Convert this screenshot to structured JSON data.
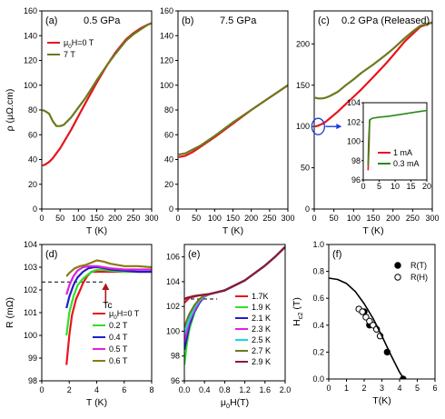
{
  "chart_data": [
    {
      "id": "a",
      "type": "line",
      "title": "(a)",
      "subtitle": "0.5 GPa",
      "xlabel": "T (K)",
      "ylabel": "ρ (μΩ.cm)",
      "xlim": [
        0,
        300
      ],
      "ylim": [
        0,
        160
      ],
      "xticks": [
        0,
        50,
        100,
        150,
        200,
        250,
        300
      ],
      "yticks": [
        0,
        20,
        40,
        60,
        80,
        100,
        120,
        140,
        160
      ],
      "legend_position": "top-left",
      "series": [
        {
          "name": "μ0H=0 T",
          "color": "#e8141c",
          "x": [
            2,
            10,
            20,
            30,
            40,
            50,
            60,
            80,
            100,
            120,
            150,
            180,
            200,
            230,
            250,
            270,
            290,
            300
          ],
          "y": [
            35,
            36,
            38,
            41,
            45,
            49,
            54,
            64,
            75,
            86,
            102,
            117,
            126,
            137,
            142,
            146,
            149,
            150
          ]
        },
        {
          "name": "7 T",
          "color": "#6b7a1e",
          "x": [
            2,
            10,
            20,
            30,
            40,
            50,
            60,
            80,
            100,
            120,
            150,
            180,
            200,
            230,
            250,
            270,
            290,
            300
          ],
          "y": [
            80,
            79,
            77,
            71,
            67,
            67,
            68,
            74,
            82,
            90,
            104,
            117,
            125,
            136,
            141,
            145,
            149,
            150
          ]
        }
      ]
    },
    {
      "id": "b",
      "type": "line",
      "title": "(b)",
      "subtitle": "7.5 GPa",
      "xlabel": "T (K)",
      "ylabel": "",
      "xlim": [
        0,
        300
      ],
      "ylim": [
        0,
        160
      ],
      "xticks": [
        0,
        50,
        100,
        150,
        200,
        250,
        300
      ],
      "yticks": [
        0,
        20,
        40,
        60,
        80,
        100,
        120,
        140,
        160
      ],
      "series": [
        {
          "name": "",
          "color": "#e8141c",
          "x": [
            2,
            20,
            40,
            60,
            80,
            100,
            150,
            200,
            250,
            300
          ],
          "y": [
            42,
            43,
            46,
            50,
            54,
            58,
            69,
            80,
            90,
            100
          ]
        },
        {
          "name": "",
          "color": "#6b7a1e",
          "x": [
            2,
            20,
            40,
            60,
            80,
            100,
            150,
            200,
            250,
            300
          ],
          "y": [
            44,
            45,
            48,
            51,
            55,
            59,
            70,
            80,
            90,
            100
          ]
        }
      ]
    },
    {
      "id": "c",
      "type": "line",
      "title": "(c)",
      "subtitle": "0.2 GPa (Released)",
      "xlabel": "T (K)",
      "ylabel": "",
      "xlim": [
        0,
        300
      ],
      "ylim": [
        0,
        240
      ],
      "xticks": [
        0,
        50,
        100,
        150,
        200,
        250,
        300
      ],
      "yticks": [
        0,
        50,
        100,
        150,
        200
      ],
      "series": [
        {
          "name": "",
          "color": "#e8141c",
          "x": [
            2,
            10,
            20,
            30,
            40,
            60,
            80,
            100,
            120,
            150,
            180,
            200,
            230,
            250,
            270,
            300
          ],
          "y": [
            100,
            101,
            103,
            106,
            110,
            118,
            127,
            136,
            145,
            160,
            175,
            186,
            203,
            212,
            221,
            226
          ]
        },
        {
          "name": "",
          "color": "#6b7a1e",
          "x": [
            2,
            10,
            20,
            30,
            40,
            60,
            80,
            100,
            120,
            150,
            180,
            200,
            230,
            250,
            270,
            300
          ],
          "y": [
            135,
            134,
            134,
            135,
            137,
            142,
            150,
            157,
            165,
            175,
            186,
            194,
            207,
            215,
            222,
            226
          ]
        }
      ],
      "inset": {
        "type": "line",
        "xlim": [
          0,
          20
        ],
        "ylim": [
          96,
          104
        ],
        "xticks": [
          0,
          5,
          10,
          15,
          20
        ],
        "yticks": [
          96,
          98,
          100,
          102,
          104
        ],
        "legend_position": "bottom-right",
        "series": [
          {
            "name": "1 mA",
            "color": "#e8141c",
            "x": [
              1.5,
              1.8,
              2.0,
              2.2
            ],
            "y": [
              97.0,
              99.5,
              102.0,
              102.3
            ]
          },
          {
            "name": "0.3 mA",
            "color": "#2a8a1a",
            "x": [
              1.5,
              1.7,
              2.0,
              2.4,
              3,
              5,
              8,
              10,
              12,
              14,
              16,
              18,
              20
            ],
            "y": [
              97.5,
              100,
              102.2,
              102.3,
              102.4,
              102.5,
              102.6,
              102.7,
              102.8,
              102.9,
              103.0,
              103.1,
              103.2
            ]
          }
        ]
      }
    },
    {
      "id": "d",
      "type": "line",
      "title": "(d)",
      "xlabel": "T (K)",
      "ylabel": "R (mΩ)",
      "xlim": [
        0,
        8
      ],
      "ylim": [
        98,
        104
      ],
      "xticks": [
        0,
        2,
        4,
        6,
        8
      ],
      "yticks": [
        98,
        99,
        100,
        101,
        102,
        103,
        104
      ],
      "legend_position": "bottom-right",
      "annotation": "Tc",
      "dashed_level": 102.35,
      "series": [
        {
          "name": "μ0H=0 T",
          "color": "#e8141c",
          "x": [
            1.8,
            2.0,
            2.2,
            2.5,
            2.8,
            3.0,
            3.3,
            3.6,
            4.0,
            4.5,
            5,
            6,
            7,
            8
          ],
          "y": [
            98.7,
            100.0,
            100.9,
            101.6,
            102.0,
            102.3,
            102.6,
            102.8,
            102.8,
            102.8,
            102.8,
            102.8,
            102.8,
            102.8
          ]
        },
        {
          "name": "0.2 T",
          "color": "#2ee02e",
          "x": [
            1.8,
            2.0,
            2.3,
            2.6,
            3.0,
            3.4,
            3.8,
            4.2,
            5,
            6,
            7,
            8
          ],
          "y": [
            100.0,
            101.0,
            101.7,
            102.2,
            102.5,
            102.7,
            102.85,
            102.9,
            102.85,
            102.8,
            102.8,
            102.8
          ]
        },
        {
          "name": "0.4 T",
          "color": "#1e1ec8",
          "x": [
            1.8,
            2.0,
            2.3,
            2.6,
            3.0,
            3.4,
            3.8,
            4.2,
            5,
            6,
            7,
            8
          ],
          "y": [
            101.2,
            101.7,
            102.2,
            102.55,
            102.8,
            102.95,
            103.0,
            103.0,
            102.9,
            102.85,
            102.8,
            102.8
          ]
        },
        {
          "name": "0.5 T",
          "color": "#e020e0",
          "x": [
            1.8,
            2.0,
            2.3,
            2.6,
            3.0,
            3.5,
            4.0,
            4.5,
            5,
            6,
            7,
            8
          ],
          "y": [
            101.8,
            102.2,
            102.6,
            102.85,
            103.0,
            103.05,
            103.05,
            103.0,
            102.95,
            102.9,
            102.9,
            102.9
          ]
        },
        {
          "name": "0.6 T",
          "color": "#8a7a14",
          "x": [
            1.8,
            2.0,
            2.4,
            2.8,
            3.2,
            3.6,
            4.0,
            4.5,
            5,
            6,
            7,
            8
          ],
          "y": [
            102.6,
            102.75,
            102.95,
            103.05,
            103.1,
            103.2,
            103.3,
            103.25,
            103.15,
            103.05,
            103.05,
            103.0
          ]
        }
      ]
    },
    {
      "id": "e",
      "type": "line",
      "title": "(e)",
      "xlabel": "μ0H(T)",
      "ylabel": "",
      "xlim": [
        0,
        2.0
      ],
      "ylim": [
        96,
        107
      ],
      "xticks": [
        0.0,
        0.4,
        0.8,
        1.2,
        1.6,
        2.0
      ],
      "yticks": [
        96,
        98,
        100,
        102,
        104,
        106
      ],
      "legend_position": "bottom-right",
      "dashed_level": 102.6,
      "series": [
        {
          "name": "1.7K",
          "color": "#e8141c",
          "x": [
            0.0,
            0.05,
            0.1,
            0.2,
            0.3,
            0.4,
            0.5,
            0.6,
            0.8,
            1.0,
            1.2,
            1.4,
            1.6,
            1.8,
            2.0
          ],
          "y": [
            102.3,
            102.5,
            102.7,
            102.8,
            102.9,
            102.95,
            103.0,
            103.1,
            103.3,
            103.7,
            104.1,
            104.7,
            105.3,
            106.0,
            106.8
          ]
        },
        {
          "name": "1.9 K",
          "color": "#2ee02e",
          "x": [
            0.0,
            0.05,
            0.1,
            0.2,
            0.3,
            0.4,
            0.5,
            0.6,
            0.8,
            1.0,
            1.2,
            1.4,
            1.6,
            1.8,
            2.0
          ],
          "y": [
            97.3,
            99.0,
            100.2,
            101.5,
            102.3,
            102.8,
            103.0,
            103.1,
            103.3,
            103.7,
            104.1,
            104.7,
            105.3,
            106.0,
            106.8
          ]
        },
        {
          "name": "2.1 K",
          "color": "#1e1ec8",
          "x": [
            0.0,
            0.05,
            0.1,
            0.2,
            0.3,
            0.4,
            0.5,
            0.6,
            0.8,
            1.0,
            1.2,
            1.4,
            1.6,
            1.8,
            2.0
          ],
          "y": [
            98.5,
            99.5,
            100.5,
            101.6,
            102.3,
            102.8,
            103.0,
            103.1,
            103.3,
            103.7,
            104.1,
            104.7,
            105.3,
            106.0,
            106.8
          ]
        },
        {
          "name": "2.3 K",
          "color": "#e020e0",
          "x": [
            0.0,
            0.05,
            0.1,
            0.2,
            0.3,
            0.4,
            0.5,
            0.6,
            0.8,
            1.0,
            1.2,
            1.4,
            1.6,
            1.8,
            2.0
          ],
          "y": [
            99.2,
            100.0,
            100.8,
            101.7,
            102.4,
            102.8,
            103.0,
            103.1,
            103.3,
            103.7,
            104.1,
            104.7,
            105.3,
            106.0,
            106.8
          ]
        },
        {
          "name": "2.5 K",
          "color": "#18d8d8",
          "x": [
            0.0,
            0.05,
            0.1,
            0.2,
            0.3,
            0.4,
            0.5,
            0.6,
            0.8,
            1.0,
            1.2,
            1.4,
            1.6,
            1.8,
            2.0
          ],
          "y": [
            99.8,
            100.4,
            101.0,
            101.9,
            102.5,
            102.85,
            103.0,
            103.1,
            103.3,
            103.7,
            104.1,
            104.7,
            105.3,
            106.0,
            106.8
          ]
        },
        {
          "name": "2.7 K",
          "color": "#6b7a1e",
          "x": [
            0.0,
            0.05,
            0.1,
            0.2,
            0.3,
            0.4,
            0.5,
            0.6,
            0.8,
            1.0,
            1.2,
            1.4,
            1.6,
            1.8,
            2.0
          ],
          "y": [
            100.3,
            100.9,
            101.4,
            102.1,
            102.6,
            102.9,
            103.0,
            103.1,
            103.3,
            103.7,
            104.1,
            104.7,
            105.3,
            106.0,
            106.8
          ]
        },
        {
          "name": "2.9 K",
          "color": "#8a1a3a",
          "x": [
            0.0,
            0.05,
            0.1,
            0.2,
            0.3,
            0.4,
            0.5,
            0.6,
            0.8,
            1.0,
            1.2,
            1.4,
            1.6,
            1.8,
            2.0
          ],
          "y": [
            102.6,
            102.7,
            102.75,
            102.85,
            102.9,
            102.95,
            103.0,
            103.1,
            103.3,
            103.7,
            104.1,
            104.7,
            105.3,
            106.0,
            106.8
          ]
        }
      ]
    },
    {
      "id": "f",
      "type": "scatter",
      "title": "(f)",
      "xlabel": "T(K)",
      "ylabel": "Hc2 (T)",
      "xlim": [
        0,
        6
      ],
      "ylim": [
        0,
        1.0
      ],
      "xticks": [
        0,
        1,
        2,
        3,
        4,
        5,
        6
      ],
      "yticks": [
        0.0,
        0.2,
        0.4,
        0.6,
        0.8,
        1.0
      ],
      "legend_position": "top-right",
      "series": [
        {
          "name": "R(T)",
          "color": "#000000",
          "marker": "filled-circle",
          "x": [
            2.0,
            2.3,
            3.3,
            4.2
          ],
          "y": [
            0.5,
            0.4,
            0.2,
            0.0
          ]
        },
        {
          "name": "R(H)",
          "color": "#000000",
          "marker": "open-circle",
          "x": [
            1.7,
            1.9,
            2.1,
            2.3,
            2.5,
            2.7,
            2.9
          ],
          "y": [
            0.52,
            0.5,
            0.46,
            0.43,
            0.4,
            0.37,
            0.32
          ]
        },
        {
          "name": "",
          "color": "#000000",
          "marker": "line",
          "x": [
            0,
            0.5,
            1.0,
            1.5,
            2.0,
            2.5,
            3.0,
            3.5,
            4.0,
            4.25
          ],
          "y": [
            0.75,
            0.74,
            0.71,
            0.65,
            0.56,
            0.45,
            0.32,
            0.18,
            0.05,
            0.0
          ]
        }
      ]
    }
  ]
}
